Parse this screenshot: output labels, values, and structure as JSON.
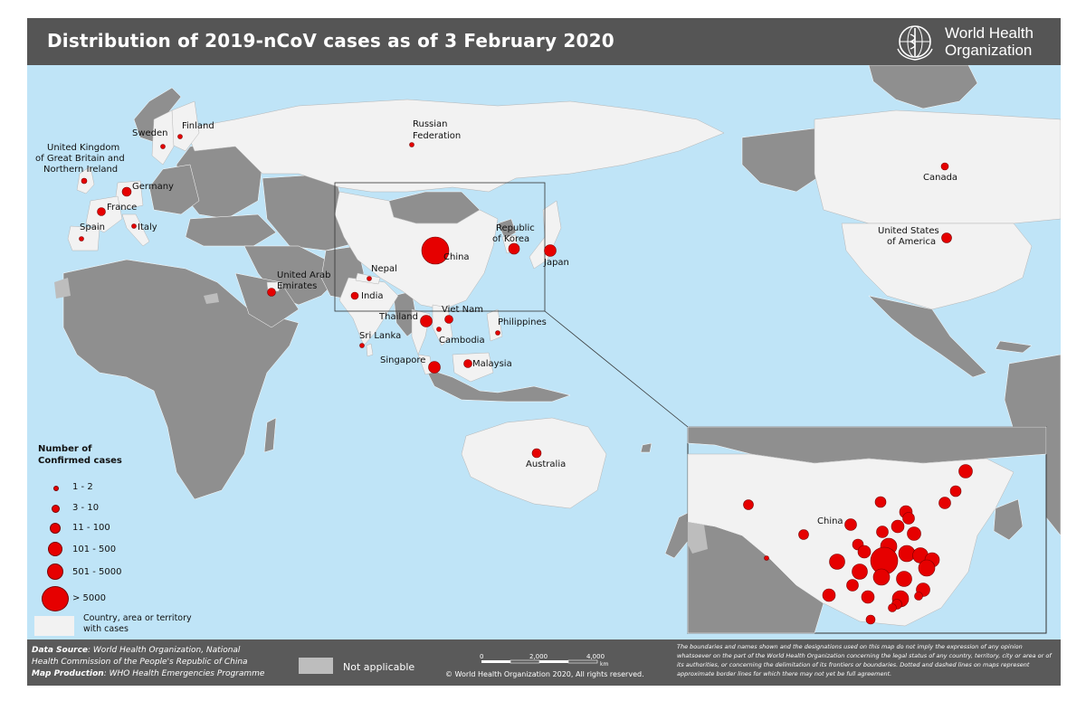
{
  "header": {
    "title": "Distribution of 2019-nCoV cases as of 3 February 2020"
  },
  "logo": {
    "line1": "World Health",
    "line2": "Organization",
    "icon": "who-emblem-icon"
  },
  "colors": {
    "ocean": "#bfe4f7",
    "country_with_cases": "#f2f2f2",
    "not_applicable": "#bdbdbd",
    "other_land": "#8f8f8f",
    "case_dot": "#e60000",
    "header_bg": "#555555"
  },
  "labels": [
    {
      "text": "Finland"
    },
    {
      "text": "Sweden"
    },
    {
      "text": "United Kingdom"
    },
    {
      "text": "of Great Britain and"
    },
    {
      "text": "Northern Ireland"
    },
    {
      "text": "Germany"
    },
    {
      "text": "France"
    },
    {
      "text": "Italy"
    },
    {
      "text": "Spain"
    },
    {
      "text": "Russian"
    },
    {
      "text": "Federation"
    },
    {
      "text": "United Arab"
    },
    {
      "text": "Emirates"
    },
    {
      "text": "Nepal"
    },
    {
      "text": "India"
    },
    {
      "text": "China"
    },
    {
      "text": "Republic"
    },
    {
      "text": "of Korea"
    },
    {
      "text": "Japan"
    },
    {
      "text": "Thailand"
    },
    {
      "text": "Viet Nam"
    },
    {
      "text": "Cambodia"
    },
    {
      "text": "Philippines"
    },
    {
      "text": "Sri Lanka"
    },
    {
      "text": "Singapore"
    },
    {
      "text": "Malaysia"
    },
    {
      "text": "Australia"
    },
    {
      "text": "Canada"
    },
    {
      "text": "United States"
    },
    {
      "text": "of America"
    },
    {
      "text": "China"
    }
  ],
  "legend": {
    "title_line1": "Number of",
    "title_line2": "Confirmed cases",
    "classes": [
      "1 - 2",
      "3 - 10",
      "11 - 100",
      "101 - 500",
      "501 - 5000",
      "> 5000"
    ],
    "country_line1": "Country, area or territory",
    "country_line2": "with cases"
  },
  "footer": {
    "source_label": "Data Source",
    "source_text": ": World Health Organization, National",
    "source_text2": "Health Commission of the People's Republic of China",
    "production_label": "Map Production",
    "production_text": ": WHO Health Emergencies Programme",
    "not_applicable": "Not applicable",
    "scale": {
      "ticks": [
        "0",
        "2,000",
        "4,000"
      ],
      "unit": "km"
    },
    "copyright": "© World Health Organization 2020, All rights reserved.",
    "disclaimer": "The boundaries and names shown and the designations used on this map do not imply the expression of any opinion whatsoever on the part of the World Health Organization concerning the legal status of any country, territory, city or area or of its authorities, or concerning the delimitation of its frontiers or boundaries. Dotted and dashed lines on maps represent approximate border lines for which there may not yet be full agreement."
  }
}
